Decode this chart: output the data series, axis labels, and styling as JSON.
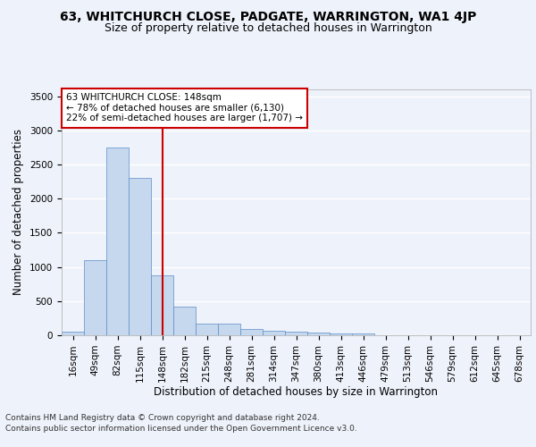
{
  "title": "63, WHITCHURCH CLOSE, PADGATE, WARRINGTON, WA1 4JP",
  "subtitle": "Size of property relative to detached houses in Warrington",
  "xlabel": "Distribution of detached houses by size in Warrington",
  "ylabel": "Number of detached properties",
  "categories": [
    "16sqm",
    "49sqm",
    "82sqm",
    "115sqm",
    "148sqm",
    "182sqm",
    "215sqm",
    "248sqm",
    "281sqm",
    "314sqm",
    "347sqm",
    "380sqm",
    "413sqm",
    "446sqm",
    "479sqm",
    "513sqm",
    "546sqm",
    "579sqm",
    "612sqm",
    "645sqm",
    "678sqm"
  ],
  "values": [
    50,
    1100,
    2750,
    2300,
    875,
    420,
    175,
    165,
    95,
    60,
    50,
    40,
    30,
    20,
    5,
    2,
    1,
    1,
    0,
    0,
    0
  ],
  "bar_color": "#c5d8ee",
  "bar_edge_color": "#5b8dc8",
  "red_line_index": 4,
  "annotation_text": "63 WHITCHURCH CLOSE: 148sqm\n← 78% of detached houses are smaller (6,130)\n22% of semi-detached houses are larger (1,707) →",
  "annotation_box_color": "#ffffff",
  "annotation_box_edge": "#cc0000",
  "footer1": "Contains HM Land Registry data © Crown copyright and database right 2024.",
  "footer2": "Contains public sector information licensed under the Open Government Licence v3.0.",
  "ylim": [
    0,
    3600
  ],
  "yticks": [
    0,
    500,
    1000,
    1500,
    2000,
    2500,
    3000,
    3500
  ],
  "title_fontsize": 10,
  "subtitle_fontsize": 9,
  "axis_label_fontsize": 8.5,
  "tick_fontsize": 7.5,
  "annotation_fontsize": 7.5,
  "footer_fontsize": 6.5,
  "background_color": "#eef2fa",
  "axes_background": "#eef2fa",
  "grid_color": "#ffffff",
  "red_line_color": "#cc0000"
}
